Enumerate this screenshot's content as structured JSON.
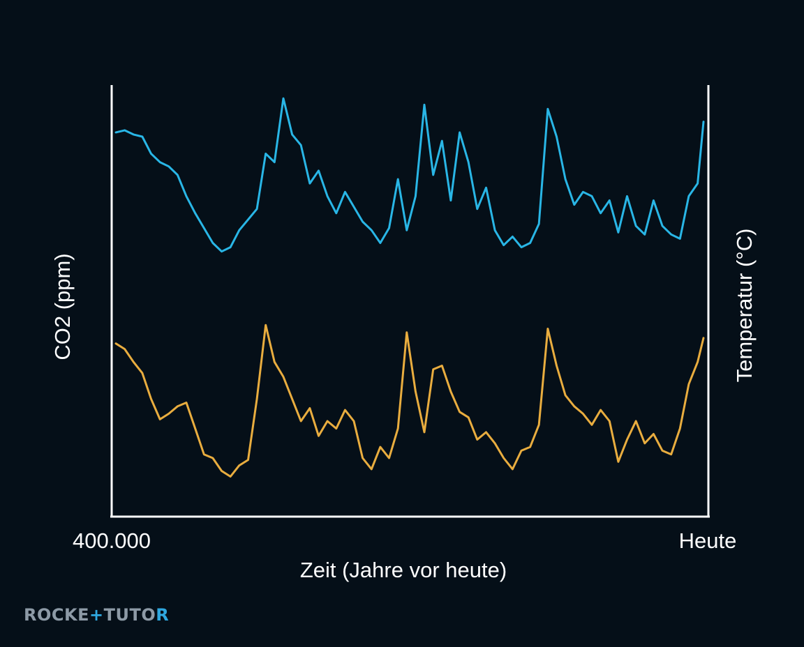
{
  "chart_data": {
    "type": "line",
    "title": "",
    "xlabel": "Zeit (Jahre vor heute)",
    "ylabel_left": "CO2 (ppm)",
    "ylabel_right": "Temperatur (°C)",
    "x_tick_labels": [
      "400.000",
      "Heute"
    ],
    "x_range": [
      400000,
      0
    ],
    "grid": false,
    "legend": "none",
    "x": [
      400000,
      394000,
      388000,
      382000,
      376000,
      370000,
      364000,
      358000,
      352000,
      346000,
      340000,
      334000,
      328000,
      322000,
      316000,
      310000,
      304000,
      298000,
      292000,
      286000,
      280000,
      274000,
      268000,
      262000,
      256000,
      250000,
      244000,
      238000,
      232000,
      226000,
      220000,
      214000,
      208000,
      202000,
      196000,
      190000,
      184000,
      178000,
      172000,
      166000,
      160000,
      154000,
      148000,
      142000,
      136000,
      130000,
      124000,
      118000,
      112000,
      106000,
      100000,
      94000,
      88000,
      82000,
      76000,
      70000,
      64000,
      58000,
      52000,
      46000,
      40000,
      34000,
      28000,
      22000,
      16000,
      10000,
      4000,
      0
    ],
    "series": [
      {
        "axis": "left",
        "color": "#29b6e6",
        "values": [
          0.82,
          0.83,
          0.81,
          0.8,
          0.72,
          0.68,
          0.66,
          0.62,
          0.52,
          0.44,
          0.37,
          0.3,
          0.26,
          0.28,
          0.36,
          0.41,
          0.46,
          0.72,
          0.68,
          0.98,
          0.81,
          0.76,
          0.58,
          0.64,
          0.52,
          0.44,
          0.54,
          0.47,
          0.4,
          0.36,
          0.3,
          0.37,
          0.6,
          0.36,
          0.52,
          0.95,
          0.62,
          0.78,
          0.5,
          0.82,
          0.68,
          0.46,
          0.56,
          0.36,
          0.29,
          0.33,
          0.28,
          0.3,
          0.39,
          0.93,
          0.8,
          0.6,
          0.48,
          0.54,
          0.52,
          0.44,
          0.5,
          0.35,
          0.52,
          0.38,
          0.34,
          0.5,
          0.38,
          0.34,
          0.32,
          0.52,
          0.58,
          0.87
        ]
      },
      {
        "axis": "right",
        "color": "#e9ad3f",
        "values": [
          0.82,
          0.79,
          0.72,
          0.66,
          0.52,
          0.41,
          0.44,
          0.48,
          0.5,
          0.36,
          0.22,
          0.2,
          0.13,
          0.1,
          0.16,
          0.19,
          0.52,
          0.92,
          0.72,
          0.64,
          0.52,
          0.4,
          0.47,
          0.32,
          0.4,
          0.36,
          0.46,
          0.4,
          0.2,
          0.14,
          0.26,
          0.2,
          0.36,
          0.88,
          0.56,
          0.34,
          0.68,
          0.7,
          0.56,
          0.45,
          0.42,
          0.3,
          0.34,
          0.28,
          0.2,
          0.14,
          0.24,
          0.26,
          0.38,
          0.9,
          0.7,
          0.54,
          0.48,
          0.44,
          0.38,
          0.46,
          0.4,
          0.18,
          0.3,
          0.4,
          0.28,
          0.33,
          0.24,
          0.22,
          0.36,
          0.6,
          0.72,
          0.85
        ]
      }
    ]
  },
  "logo": {
    "part1": "ROCKE",
    "plus": "+",
    "part2": "TUTO",
    "part3": "R"
  }
}
